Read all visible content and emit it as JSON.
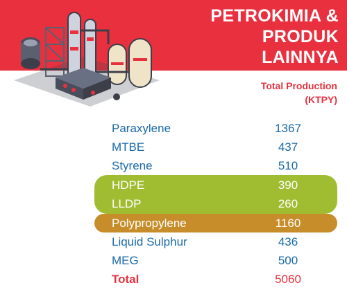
{
  "title": {
    "line1": "PETROKIMIA &",
    "line2": "PRODUK",
    "line3": "LAINNYA"
  },
  "column_header": {
    "line1": "Total Production",
    "line2": "(KTPY)"
  },
  "rows": [
    {
      "label": "Paraxylene",
      "value": "1367"
    },
    {
      "label": "MTBE",
      "value": "437"
    },
    {
      "label": "Styrene",
      "value": "510"
    },
    {
      "label": "HDPE",
      "value": "390"
    },
    {
      "label": "LLDP",
      "value": "260"
    },
    {
      "label": "Polypropylene",
      "value": "1160"
    },
    {
      "label": "Liquid Sulphur",
      "value": "436"
    },
    {
      "label": "MEG",
      "value": "500"
    }
  ],
  "total": {
    "label": "Total",
    "value": "5060"
  },
  "colors": {
    "banner_red": "#e8303f",
    "text_blue": "#1a6aa8",
    "highlight_green": "#a0bd32",
    "highlight_gold": "#c78d2a"
  },
  "illustration_icon": "petrochemical-plant-icon"
}
